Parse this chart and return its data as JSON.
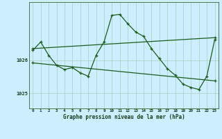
{
  "title": "Graphe pression niveau de la mer (hPa)",
  "bg_color": "#cceeff",
  "line_color": "#1a5c1a",
  "grid_color": "#aaccbb",
  "x_ticks": [
    0,
    1,
    2,
    3,
    4,
    5,
    6,
    7,
    8,
    9,
    10,
    11,
    12,
    13,
    14,
    15,
    16,
    17,
    18,
    19,
    20,
    21,
    22,
    23
  ],
  "xlim": [
    -0.5,
    23.5
  ],
  "ylim": [
    1024.55,
    1027.75
  ],
  "y_ticks": [
    1025,
    1026
  ],
  "main_series": {
    "x": [
      0,
      1,
      2,
      3,
      4,
      5,
      6,
      7,
      8,
      9,
      10,
      11,
      12,
      13,
      14,
      15,
      16,
      17,
      18,
      19,
      20,
      21,
      22,
      23
    ],
    "y": [
      1026.3,
      1026.55,
      1026.15,
      1025.85,
      1025.72,
      1025.78,
      1025.62,
      1025.52,
      1026.15,
      1026.55,
      1027.35,
      1027.38,
      1027.1,
      1026.85,
      1026.72,
      1026.35,
      1026.05,
      1025.75,
      1025.55,
      1025.28,
      1025.18,
      1025.12,
      1025.52,
      1026.62
    ]
  },
  "upper_line": {
    "x": [
      0,
      23
    ],
    "y": [
      1026.35,
      1026.68
    ]
  },
  "lower_line": {
    "x": [
      0,
      23
    ],
    "y": [
      1025.92,
      1025.38
    ]
  },
  "marker": "+"
}
